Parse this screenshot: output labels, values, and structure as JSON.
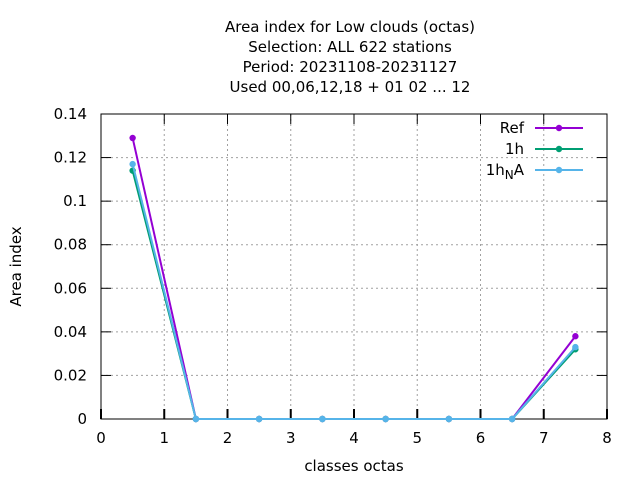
{
  "chart_data": {
    "type": "line",
    "title_lines": [
      "Area index  for Low clouds (octas)",
      "Selection: ALL    622 stations",
      "Period: 20231108-20231127",
      "Used  00,06,12,18 + 01 02 ... 12"
    ],
    "xlabel": "classes octas",
    "ylabel": "Area index",
    "xlim": [
      0,
      8
    ],
    "ylim": [
      0,
      0.14
    ],
    "xticks": [
      0,
      1,
      2,
      3,
      4,
      5,
      6,
      7,
      8
    ],
    "yticks": [
      0,
      0.02,
      0.04,
      0.06,
      0.08,
      0.1,
      0.12,
      0.14
    ],
    "grid": true,
    "legend_position": "top-right",
    "x": [
      0.5,
      1.5,
      2.5,
      3.5,
      4.5,
      5.5,
      6.5,
      7.5
    ],
    "series": [
      {
        "name": "Ref",
        "name_main": "Ref",
        "name_sub": "",
        "name_tail": "",
        "color": "#9400d3",
        "values": [
          0.129,
          0.0,
          0.0,
          0.0,
          0.0,
          0.0,
          0.0,
          0.038
        ]
      },
      {
        "name": "1h",
        "name_main": "1h",
        "name_sub": "",
        "name_tail": "",
        "color": "#009e73",
        "values": [
          0.114,
          0.0,
          0.0,
          0.0,
          0.0,
          0.0,
          0.0,
          0.032
        ]
      },
      {
        "name": "1h_NA",
        "name_main": "1h",
        "name_sub": "N",
        "name_tail": "A",
        "color": "#56b4e9",
        "values": [
          0.117,
          0.0,
          0.0,
          0.0,
          0.0,
          0.0,
          0.0,
          0.033
        ]
      }
    ]
  }
}
